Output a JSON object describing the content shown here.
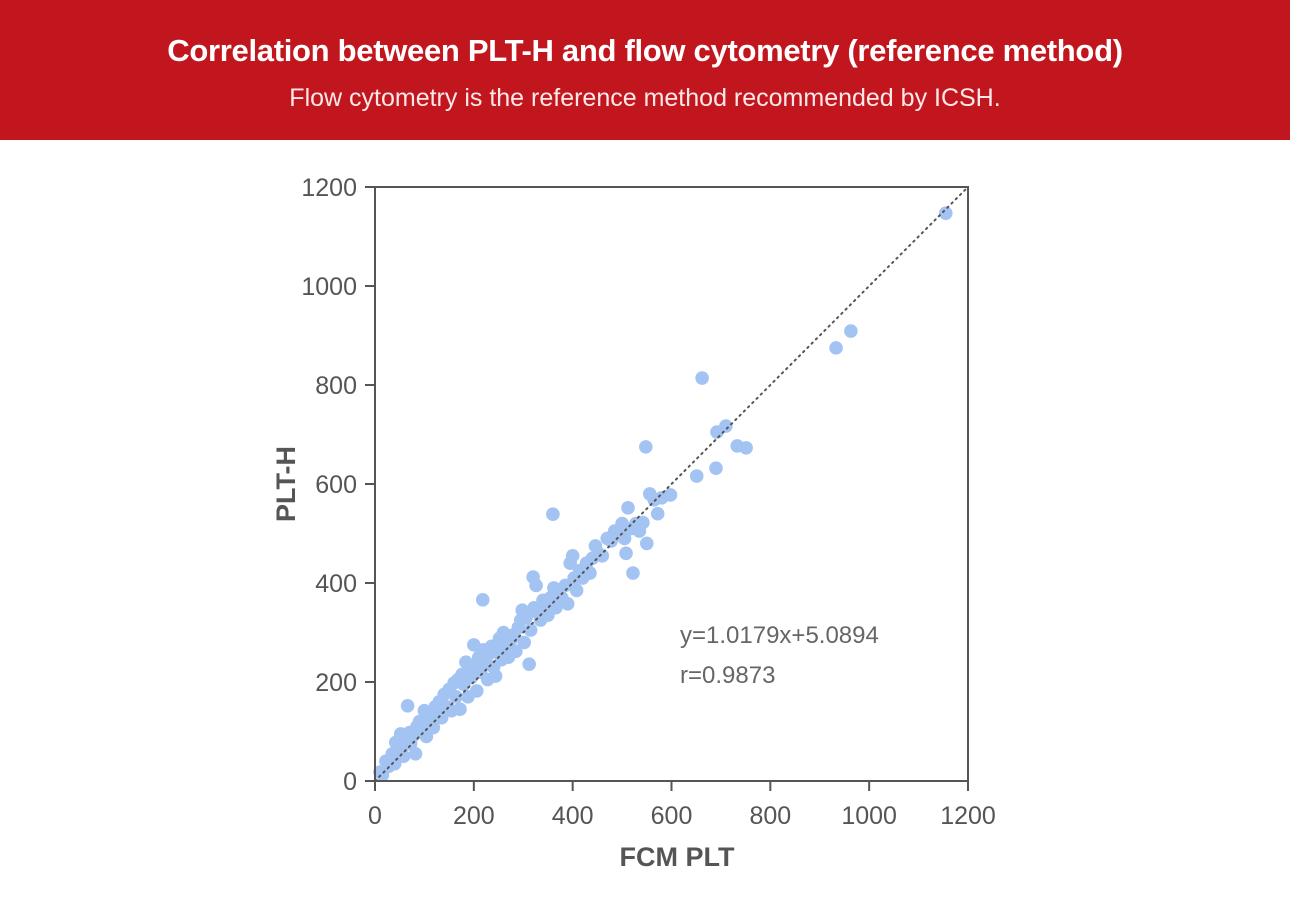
{
  "header": {
    "title": "Correlation between PLT-H and flow cytometry (reference method)",
    "subtitle": "Flow cytometry is the reference method recommended by ICSH.",
    "background_color": "#c2161e"
  },
  "chart_data": {
    "type": "scatter",
    "xlabel": "FCM PLT",
    "ylabel": "PLT-H",
    "xlim": [
      0,
      1200
    ],
    "ylim": [
      0,
      1200
    ],
    "xticks": [
      0,
      200,
      400,
      600,
      800,
      1000,
      1200
    ],
    "yticks": [
      0,
      200,
      400,
      600,
      800,
      1000,
      1200
    ],
    "grid": false,
    "point_color": "#a3c4f3",
    "reference_line": {
      "style": "dotted",
      "from": [
        0,
        0
      ],
      "to": [
        1200,
        1200
      ],
      "color": "#555555"
    },
    "annotations": [
      "y=1.0179x+5.0894",
      "r=0.9873"
    ],
    "points": [
      [
        10,
        18
      ],
      [
        15,
        12
      ],
      [
        22,
        40
      ],
      [
        28,
        30
      ],
      [
        35,
        55
      ],
      [
        40,
        35
      ],
      [
        42,
        78
      ],
      [
        48,
        62
      ],
      [
        52,
        95
      ],
      [
        55,
        70
      ],
      [
        58,
        50
      ],
      [
        62,
        88
      ],
      [
        66,
        152
      ],
      [
        70,
        98
      ],
      [
        72,
        75
      ],
      [
        78,
        92
      ],
      [
        82,
        55
      ],
      [
        85,
        110
      ],
      [
        90,
        120
      ],
      [
        95,
        100
      ],
      [
        100,
        142
      ],
      [
        104,
        90
      ],
      [
        108,
        130
      ],
      [
        112,
        115
      ],
      [
        118,
        108
      ],
      [
        122,
        150
      ],
      [
        126,
        138
      ],
      [
        130,
        160
      ],
      [
        135,
        128
      ],
      [
        140,
        175
      ],
      [
        145,
        150
      ],
      [
        150,
        185
      ],
      [
        155,
        142
      ],
      [
        160,
        198
      ],
      [
        164,
        170
      ],
      [
        168,
        205
      ],
      [
        172,
        145
      ],
      [
        176,
        215
      ],
      [
        180,
        195
      ],
      [
        184,
        240
      ],
      [
        188,
        170
      ],
      [
        192,
        225
      ],
      [
        196,
        210
      ],
      [
        200,
        275
      ],
      [
        203,
        235
      ],
      [
        206,
        182
      ],
      [
        210,
        250
      ],
      [
        214,
        220
      ],
      [
        218,
        366
      ],
      [
        220,
        265
      ],
      [
        224,
        240
      ],
      [
        228,
        205
      ],
      [
        232,
        258
      ],
      [
        236,
        272
      ],
      [
        240,
        230
      ],
      [
        244,
        212
      ],
      [
        248,
        262
      ],
      [
        252,
        288
      ],
      [
        256,
        245
      ],
      [
        260,
        300
      ],
      [
        265,
        270
      ],
      [
        270,
        250
      ],
      [
        275,
        285
      ],
      [
        280,
        295
      ],
      [
        285,
        262
      ],
      [
        290,
        310
      ],
      [
        295,
        325
      ],
      [
        298,
        345
      ],
      [
        302,
        280
      ],
      [
        306,
        330
      ],
      [
        312,
        236
      ],
      [
        315,
        305
      ],
      [
        320,
        412
      ],
      [
        322,
        350
      ],
      [
        326,
        395
      ],
      [
        330,
        340
      ],
      [
        335,
        325
      ],
      [
        340,
        365
      ],
      [
        345,
        355
      ],
      [
        350,
        335
      ],
      [
        355,
        370
      ],
      [
        360,
        539
      ],
      [
        362,
        390
      ],
      [
        366,
        350
      ],
      [
        372,
        380
      ],
      [
        378,
        370
      ],
      [
        385,
        395
      ],
      [
        390,
        358
      ],
      [
        395,
        440
      ],
      [
        400,
        455
      ],
      [
        403,
        410
      ],
      [
        408,
        385
      ],
      [
        414,
        425
      ],
      [
        420,
        410
      ],
      [
        428,
        440
      ],
      [
        435,
        420
      ],
      [
        440,
        450
      ],
      [
        446,
        475
      ],
      [
        452,
        460
      ],
      [
        460,
        455
      ],
      [
        470,
        490
      ],
      [
        478,
        485
      ],
      [
        485,
        505
      ],
      [
        492,
        500
      ],
      [
        500,
        520
      ],
      [
        505,
        490
      ],
      [
        508,
        460
      ],
      [
        512,
        552
      ],
      [
        518,
        510
      ],
      [
        522,
        420
      ],
      [
        528,
        520
      ],
      [
        535,
        505
      ],
      [
        542,
        522
      ],
      [
        548,
        675
      ],
      [
        550,
        480
      ],
      [
        556,
        580
      ],
      [
        565,
        568
      ],
      [
        572,
        540
      ],
      [
        580,
        572
      ],
      [
        598,
        578
      ],
      [
        651,
        616
      ],
      [
        662,
        814
      ],
      [
        690,
        632
      ],
      [
        692,
        705
      ],
      [
        710,
        717
      ],
      [
        733,
        677
      ],
      [
        751,
        673
      ],
      [
        933,
        875
      ],
      [
        963,
        909
      ],
      [
        1155,
        1147
      ]
    ]
  }
}
